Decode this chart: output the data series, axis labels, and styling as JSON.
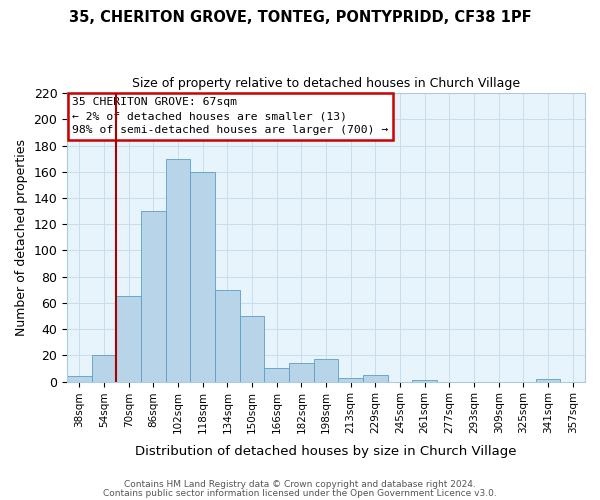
{
  "title": "35, CHERITON GROVE, TONTEG, PONTYPRIDD, CF38 1PF",
  "subtitle": "Size of property relative to detached houses in Church Village",
  "xlabel": "Distribution of detached houses by size in Church Village",
  "ylabel": "Number of detached properties",
  "bar_labels": [
    "38sqm",
    "54sqm",
    "70sqm",
    "86sqm",
    "102sqm",
    "118sqm",
    "134sqm",
    "150sqm",
    "166sqm",
    "182sqm",
    "198sqm",
    "213sqm",
    "229sqm",
    "245sqm",
    "261sqm",
    "277sqm",
    "293sqm",
    "309sqm",
    "325sqm",
    "341sqm",
    "357sqm"
  ],
  "bar_values": [
    4,
    20,
    65,
    130,
    170,
    160,
    70,
    50,
    10,
    14,
    17,
    3,
    5,
    0,
    1,
    0,
    0,
    0,
    0,
    2,
    0
  ],
  "bar_color": "#b8d4e8",
  "bar_edge_color": "#5a9dc8",
  "highlight_color": "#aa0000",
  "ylim": [
    0,
    220
  ],
  "yticks": [
    0,
    20,
    40,
    60,
    80,
    100,
    120,
    140,
    160,
    180,
    200,
    220
  ],
  "annotation_title": "35 CHERITON GROVE: 67sqm",
  "annotation_line1": "← 2% of detached houses are smaller (13)",
  "annotation_line2": "98% of semi-detached houses are larger (700) →",
  "annotation_box_color": "#ffffff",
  "annotation_box_edge": "#cc0000",
  "footer_line1": "Contains HM Land Registry data © Crown copyright and database right 2024.",
  "footer_line2": "Contains public sector information licensed under the Open Government Licence v3.0.",
  "background_color": "#ffffff",
  "plot_bg_color": "#e8f4fb",
  "grid_color": "#c8dded"
}
